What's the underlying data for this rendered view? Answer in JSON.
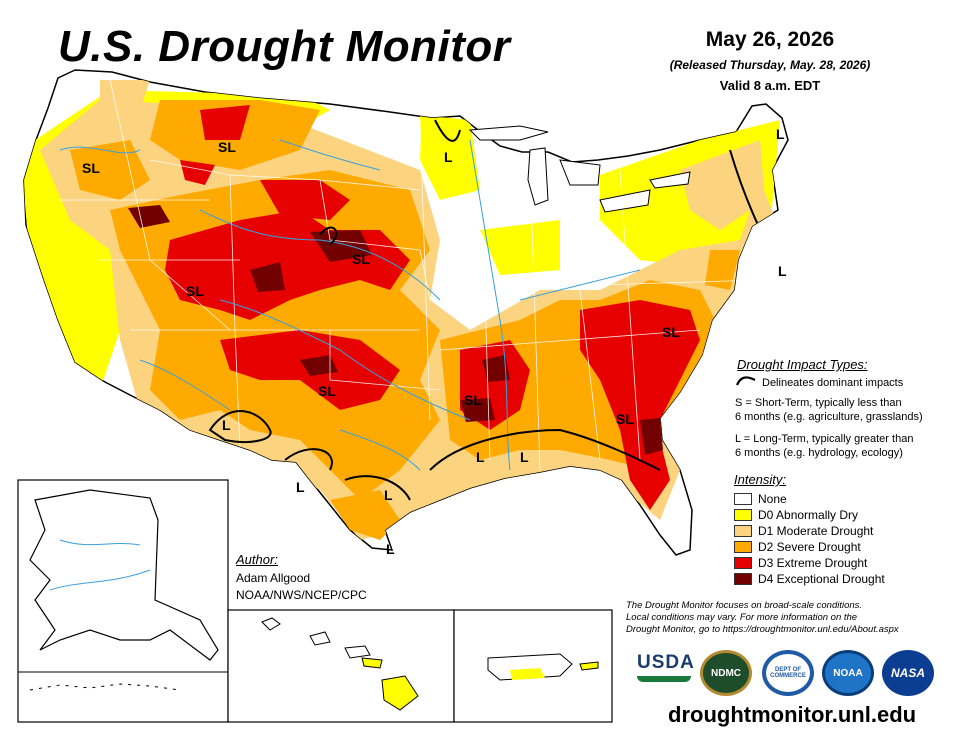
{
  "header": {
    "title": "U.S. Drought Monitor",
    "date": "May 26, 2026",
    "released": "(Released Thursday, May. 28, 2026)",
    "valid": "Valid 8 a.m. EDT"
  },
  "map_labels": {
    "sl_1": "SL",
    "sl_2": "SL",
    "sl_3": "SL",
    "sl_4": "SL",
    "sl_5": "SL",
    "sl_6": "SL",
    "sl_7": "SL",
    "sl_8": "SL",
    "l_1": "L",
    "l_2": "L",
    "l_3": "L",
    "l_4": "L",
    "l_5": "L",
    "l_6": "L",
    "l_7": "L",
    "l_8": "L",
    "l_9": "L"
  },
  "impact_types": {
    "title": "Drought Impact Types:",
    "delineates": "Delineates dominant impacts",
    "short_term_1": "S = Short-Term, typically less than",
    "short_term_2": "6 months (e.g. agriculture, grasslands)",
    "long_term_1": "L = Long-Term, typically greater than",
    "long_term_2": "6 months (e.g. hydrology, ecology)"
  },
  "intensity": {
    "title": "Intensity:",
    "items": [
      {
        "label": "None",
        "color": "#ffffff"
      },
      {
        "label": "D0 Abnormally Dry",
        "color": "#ffff00"
      },
      {
        "label": "D1 Moderate Drought",
        "color": "#fcd37f"
      },
      {
        "label": "D2 Severe Drought",
        "color": "#ffaa00"
      },
      {
        "label": "D3 Extreme Drought",
        "color": "#e60000"
      },
      {
        "label": "D4 Exceptional Drought",
        "color": "#730000"
      }
    ]
  },
  "author": {
    "title": "Author:",
    "name": "Adam Allgood",
    "org": "NOAA/NWS/NCEP/CPC"
  },
  "note": {
    "line1": "The Drought Monitor focuses on broad-scale conditions.",
    "line2": "Local conditions may vary. For more information on the",
    "line3": "Drought Monitor, go to https://droughtmonitor.unl.edu/About.aspx"
  },
  "logos": {
    "usda": "USDA",
    "ndmc": "NDMC",
    "commerce": "DEPT OF COMMERCE",
    "noaa": "NOAA",
    "nasa": "NASA"
  },
  "footer": {
    "url": "droughtmonitor.unl.edu"
  }
}
